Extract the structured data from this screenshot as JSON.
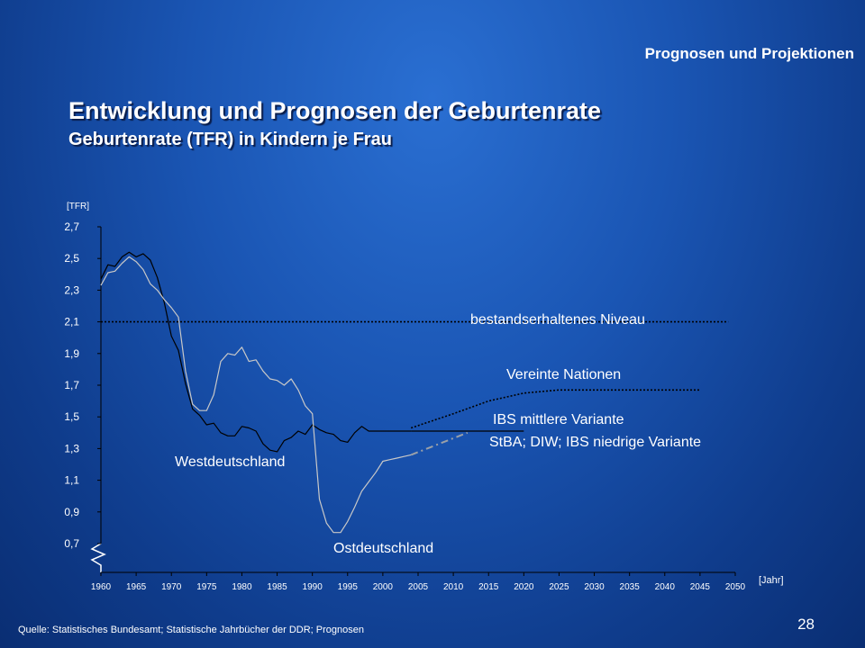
{
  "header": {
    "section_label": "Prognosen und Projektionen",
    "title": "Entwicklung und Prognosen der Geburtenrate",
    "subtitle": "Geburtenrate (TFR) in Kindern je Frau"
  },
  "footer": {
    "source": "Quelle: Statistisches Bundesamt; Statistische Jahrbücher der DDR; Prognosen",
    "page_number": "28"
  },
  "colors": {
    "background": "#1a55b3",
    "axis": "#000000",
    "west": "#000000",
    "east": "#c8c8c8",
    "text": "#ffffff"
  },
  "chart_data": {
    "type": "line",
    "ylabel": "[TFR]",
    "xlabel": "[Jahr]",
    "ylim": [
      0.7,
      2.7
    ],
    "y_ticks": [
      "2,7",
      "2,5",
      "2,3",
      "2,1",
      "1,9",
      "1,7",
      "1,5",
      "1,3",
      "1,1",
      "0,9",
      "0,7"
    ],
    "xlim": [
      1960,
      2050
    ],
    "x_ticks": [
      "1960",
      "1965",
      "1970",
      "1975",
      "1980",
      "1985",
      "1990",
      "1995",
      "2000",
      "2005",
      "2010",
      "2015",
      "2020",
      "2025",
      "2030",
      "2035",
      "2040",
      "2045",
      "2050"
    ],
    "grid": false,
    "series": [
      {
        "name": "Westdeutschland",
        "color": "#000000",
        "x": [
          1960,
          1961,
          1962,
          1963,
          1964,
          1965,
          1966,
          1967,
          1968,
          1969,
          1970,
          1971,
          1972,
          1973,
          1974,
          1975,
          1976,
          1977,
          1978,
          1979,
          1980,
          1981,
          1982,
          1983,
          1984,
          1985,
          1986,
          1987,
          1988,
          1989,
          1990,
          1991,
          1992,
          1993,
          1994,
          1995,
          1996,
          1997,
          1998,
          1999,
          2000,
          2001,
          2002,
          2003,
          2004
        ],
        "values": [
          2.37,
          2.46,
          2.45,
          2.51,
          2.54,
          2.51,
          2.53,
          2.49,
          2.38,
          2.22,
          2.01,
          1.92,
          1.71,
          1.55,
          1.51,
          1.45,
          1.46,
          1.4,
          1.38,
          1.38,
          1.44,
          1.43,
          1.41,
          1.33,
          1.29,
          1.28,
          1.35,
          1.37,
          1.41,
          1.39,
          1.45,
          1.42,
          1.4,
          1.39,
          1.35,
          1.34,
          1.4,
          1.44,
          1.41,
          1.41,
          1.41,
          1.41,
          1.41,
          1.41,
          1.41
        ]
      },
      {
        "name": "Ostdeutschland",
        "color": "#c8c8c8",
        "x": [
          1960,
          1961,
          1962,
          1963,
          1964,
          1965,
          1966,
          1967,
          1968,
          1969,
          1970,
          1971,
          1972,
          1973,
          1974,
          1975,
          1976,
          1977,
          1978,
          1979,
          1980,
          1981,
          1982,
          1983,
          1984,
          1985,
          1986,
          1987,
          1988,
          1989,
          1990,
          1991,
          1992,
          1993,
          1994,
          1995,
          1996,
          1997,
          1998,
          1999,
          2000,
          2001,
          2002,
          2003,
          2004
        ],
        "values": [
          2.33,
          2.41,
          2.42,
          2.47,
          2.51,
          2.48,
          2.43,
          2.34,
          2.3,
          2.24,
          2.19,
          2.13,
          1.79,
          1.58,
          1.54,
          1.54,
          1.64,
          1.85,
          1.9,
          1.89,
          1.94,
          1.85,
          1.86,
          1.79,
          1.74,
          1.73,
          1.7,
          1.74,
          1.67,
          1.57,
          1.52,
          0.98,
          0.83,
          0.77,
          0.77,
          0.84,
          0.93,
          1.03,
          1.09,
          1.15,
          1.22,
          1.23,
          1.24,
          1.25,
          1.26
        ]
      },
      {
        "name": "bestandserhaltenes Niveau",
        "style": "dotted",
        "color": "#000000",
        "x": [
          1960,
          2049
        ],
        "values": [
          2.1,
          2.1
        ]
      },
      {
        "name": "Vereinte Nationen",
        "style": "dotted",
        "color": "#000000",
        "x": [
          2004,
          2010,
          2015,
          2020,
          2025,
          2030,
          2035,
          2040,
          2045
        ],
        "values": [
          1.43,
          1.52,
          1.6,
          1.65,
          1.67,
          1.67,
          1.67,
          1.67,
          1.67
        ]
      },
      {
        "name": "IBS mittlere Variante",
        "style": "solid",
        "color": "#000000",
        "x": [
          2004,
          2010,
          2015,
          2020
        ],
        "values": [
          1.41,
          1.41,
          1.41,
          1.41
        ]
      },
      {
        "name": "StBA; DIW; IBS niedrige Variante",
        "style": "dashdot",
        "color": "#9aa0a8",
        "x": [
          2004,
          2008,
          2012
        ],
        "values": [
          1.26,
          1.33,
          1.4
        ]
      }
    ],
    "annotations": [
      "bestandserhaltenes Niveau",
      "Vereinte Nationen",
      "IBS mittlere Variante",
      "StBA; DIW; IBS niedrige Variante",
      "Westdeutschland",
      "Ostdeutschland"
    ]
  }
}
